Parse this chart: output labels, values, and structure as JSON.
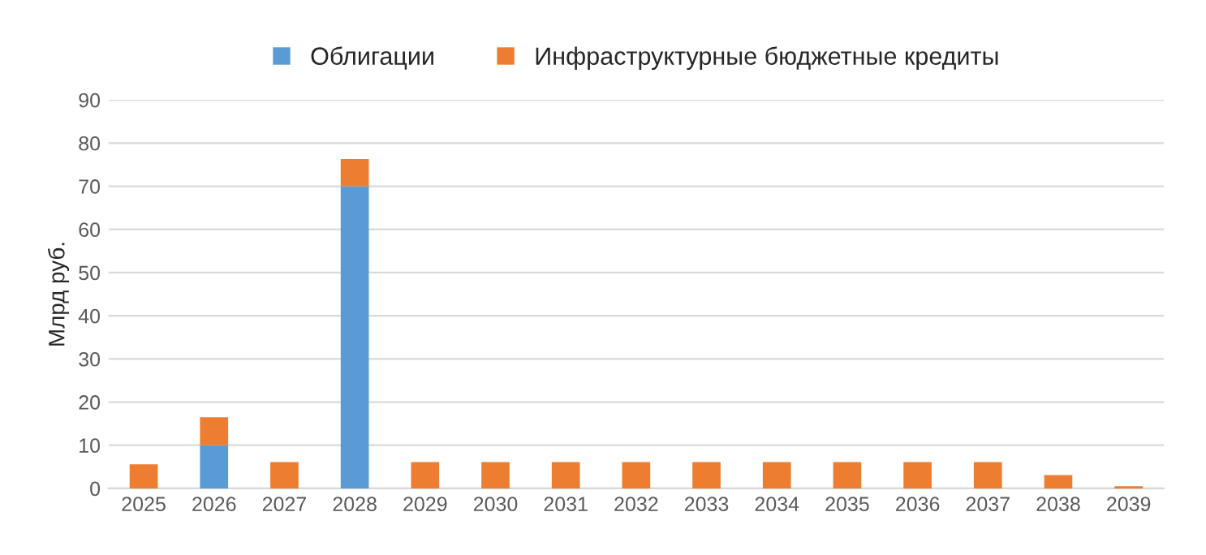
{
  "chart_data": {
    "type": "bar",
    "stacked": true,
    "ylabel": "Млрд руб.",
    "categories": [
      "2025",
      "2026",
      "2027",
      "2028",
      "2029",
      "2030",
      "2031",
      "2032",
      "2033",
      "2034",
      "2035",
      "2036",
      "2037",
      "2038",
      "2039"
    ],
    "series": [
      {
        "name": "Облигации",
        "color": "#5b9bd5",
        "values": [
          null,
          10,
          null,
          70,
          null,
          null,
          null,
          null,
          null,
          null,
          null,
          null,
          null,
          null,
          null
        ]
      },
      {
        "name": "Инфраструктурные бюджетные кредиты",
        "color": "#ed7d31",
        "values": [
          5.6,
          6.5,
          6.1,
          6.3,
          6.1,
          6.1,
          6.1,
          6.1,
          6.1,
          6.1,
          6.1,
          6.1,
          6.1,
          3.1,
          0.5
        ]
      }
    ],
    "ylim": [
      0,
      90
    ],
    "yticks": [
      0,
      10,
      20,
      30,
      40,
      50,
      60,
      70,
      80,
      90
    ],
    "grid": "y",
    "legend": "top"
  }
}
